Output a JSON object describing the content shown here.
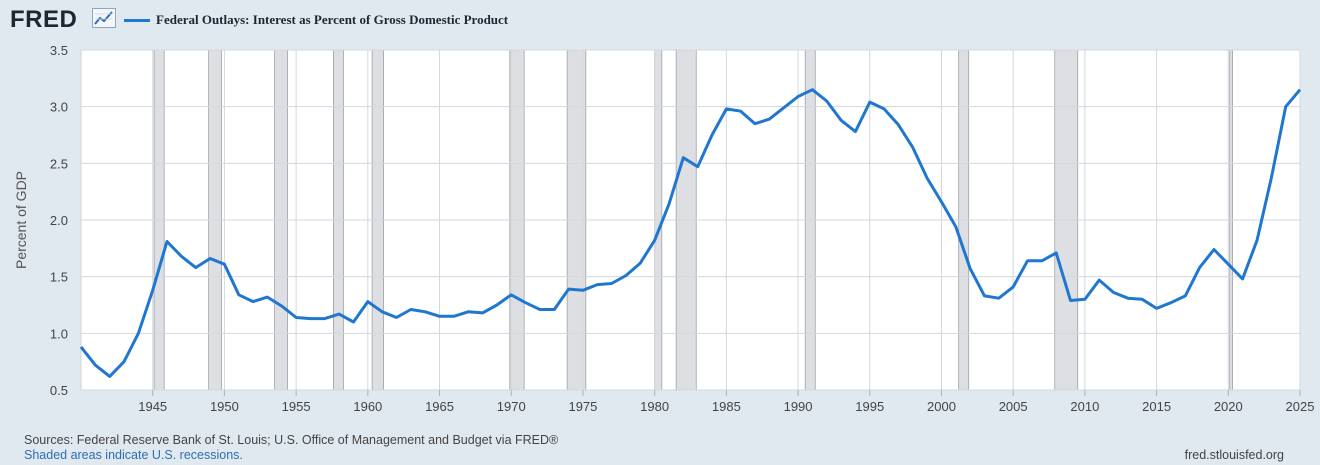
{
  "header": {
    "logo_text": "FRED",
    "logo_icon": "line-chart-icon",
    "series_title": "Federal Outlays: Interest as Percent of Gross Domestic Product",
    "series_color": "#1f77d0"
  },
  "footer": {
    "sources": "Sources: Federal Reserve Bank of St. Louis; U.S. Office of Management and Budget via FRED®",
    "recession_note": "Shaded areas indicate U.S. recessions.",
    "site": "fred.stlouisfed.org"
  },
  "chart_data": {
    "type": "line",
    "title": "Federal Outlays: Interest as Percent of Gross Domestic Product",
    "ylabel": "Percent of GDP",
    "xlabel": "",
    "xlim": [
      1940,
      2025
    ],
    "ylim": [
      0.5,
      3.5
    ],
    "y_ticks": [
      0.5,
      1.0,
      1.5,
      2.0,
      2.5,
      3.0,
      3.5
    ],
    "y_tick_labels": [
      "0.5",
      "1.0",
      "1.5",
      "2.0",
      "2.5",
      "3.0",
      "3.5"
    ],
    "x_ticks": [
      1945,
      1950,
      1955,
      1960,
      1965,
      1970,
      1975,
      1980,
      1985,
      1990,
      1995,
      2000,
      2005,
      2010,
      2015,
      2020,
      2025
    ],
    "x_tick_labels": [
      "1945",
      "1950",
      "1955",
      "1960",
      "1965",
      "1970",
      "1975",
      "1980",
      "1985",
      "1990",
      "1995",
      "2000",
      "2005",
      "2010",
      "2015",
      "2020",
      "2025"
    ],
    "grid": true,
    "line_color": "#1f77d0",
    "recessions": [
      [
        1945.1,
        1945.8
      ],
      [
        1948.9,
        1949.8
      ],
      [
        1953.5,
        1954.4
      ],
      [
        1957.6,
        1958.3
      ],
      [
        1960.3,
        1961.1
      ],
      [
        1969.9,
        1970.9
      ],
      [
        1973.9,
        1975.2
      ],
      [
        1980.0,
        1980.5
      ],
      [
        1981.5,
        1982.9
      ],
      [
        1990.5,
        1991.2
      ],
      [
        2001.2,
        2001.9
      ],
      [
        2007.9,
        2009.5
      ],
      [
        2020.1,
        2020.3
      ]
    ],
    "series": [
      {
        "name": "Federal Outlays: Interest as Percent of Gross Domestic Product",
        "x": [
          1940,
          1941,
          1942,
          1943,
          1944,
          1945,
          1946,
          1947,
          1948,
          1949,
          1950,
          1951,
          1952,
          1953,
          1954,
          1955,
          1956,
          1957,
          1958,
          1959,
          1960,
          1961,
          1962,
          1963,
          1964,
          1965,
          1966,
          1967,
          1968,
          1969,
          1970,
          1971,
          1972,
          1973,
          1974,
          1975,
          1976,
          1977,
          1978,
          1979,
          1980,
          1981,
          1982,
          1983,
          1984,
          1985,
          1986,
          1987,
          1988,
          1989,
          1990,
          1991,
          1992,
          1993,
          1994,
          1995,
          1996,
          1997,
          1998,
          1999,
          2000,
          2001,
          2002,
          2003,
          2004,
          2005,
          2006,
          2007,
          2008,
          2009,
          2010,
          2011,
          2012,
          2013,
          2014,
          2015,
          2016,
          2017,
          2018,
          2019,
          2020,
          2021,
          2022,
          2023,
          2024,
          2025
        ],
        "values": [
          0.88,
          0.72,
          0.62,
          0.75,
          1.0,
          1.38,
          1.81,
          1.68,
          1.58,
          1.66,
          1.61,
          1.34,
          1.28,
          1.32,
          1.24,
          1.14,
          1.13,
          1.13,
          1.17,
          1.1,
          1.28,
          1.19,
          1.14,
          1.21,
          1.19,
          1.15,
          1.15,
          1.19,
          1.18,
          1.25,
          1.34,
          1.27,
          1.21,
          1.21,
          1.39,
          1.38,
          1.43,
          1.44,
          1.51,
          1.62,
          1.82,
          2.14,
          2.55,
          2.47,
          2.75,
          2.98,
          2.96,
          2.85,
          2.89,
          2.99,
          3.09,
          3.15,
          3.05,
          2.88,
          2.78,
          3.04,
          2.98,
          2.84,
          2.64,
          2.37,
          2.16,
          1.94,
          1.57,
          1.33,
          1.31,
          1.41,
          1.64,
          1.64,
          1.71,
          1.29,
          1.3,
          1.47,
          1.36,
          1.31,
          1.3,
          1.22,
          1.27,
          1.33,
          1.58,
          1.74,
          1.61,
          1.48,
          1.82,
          2.37,
          3.0,
          3.15
        ]
      }
    ]
  }
}
